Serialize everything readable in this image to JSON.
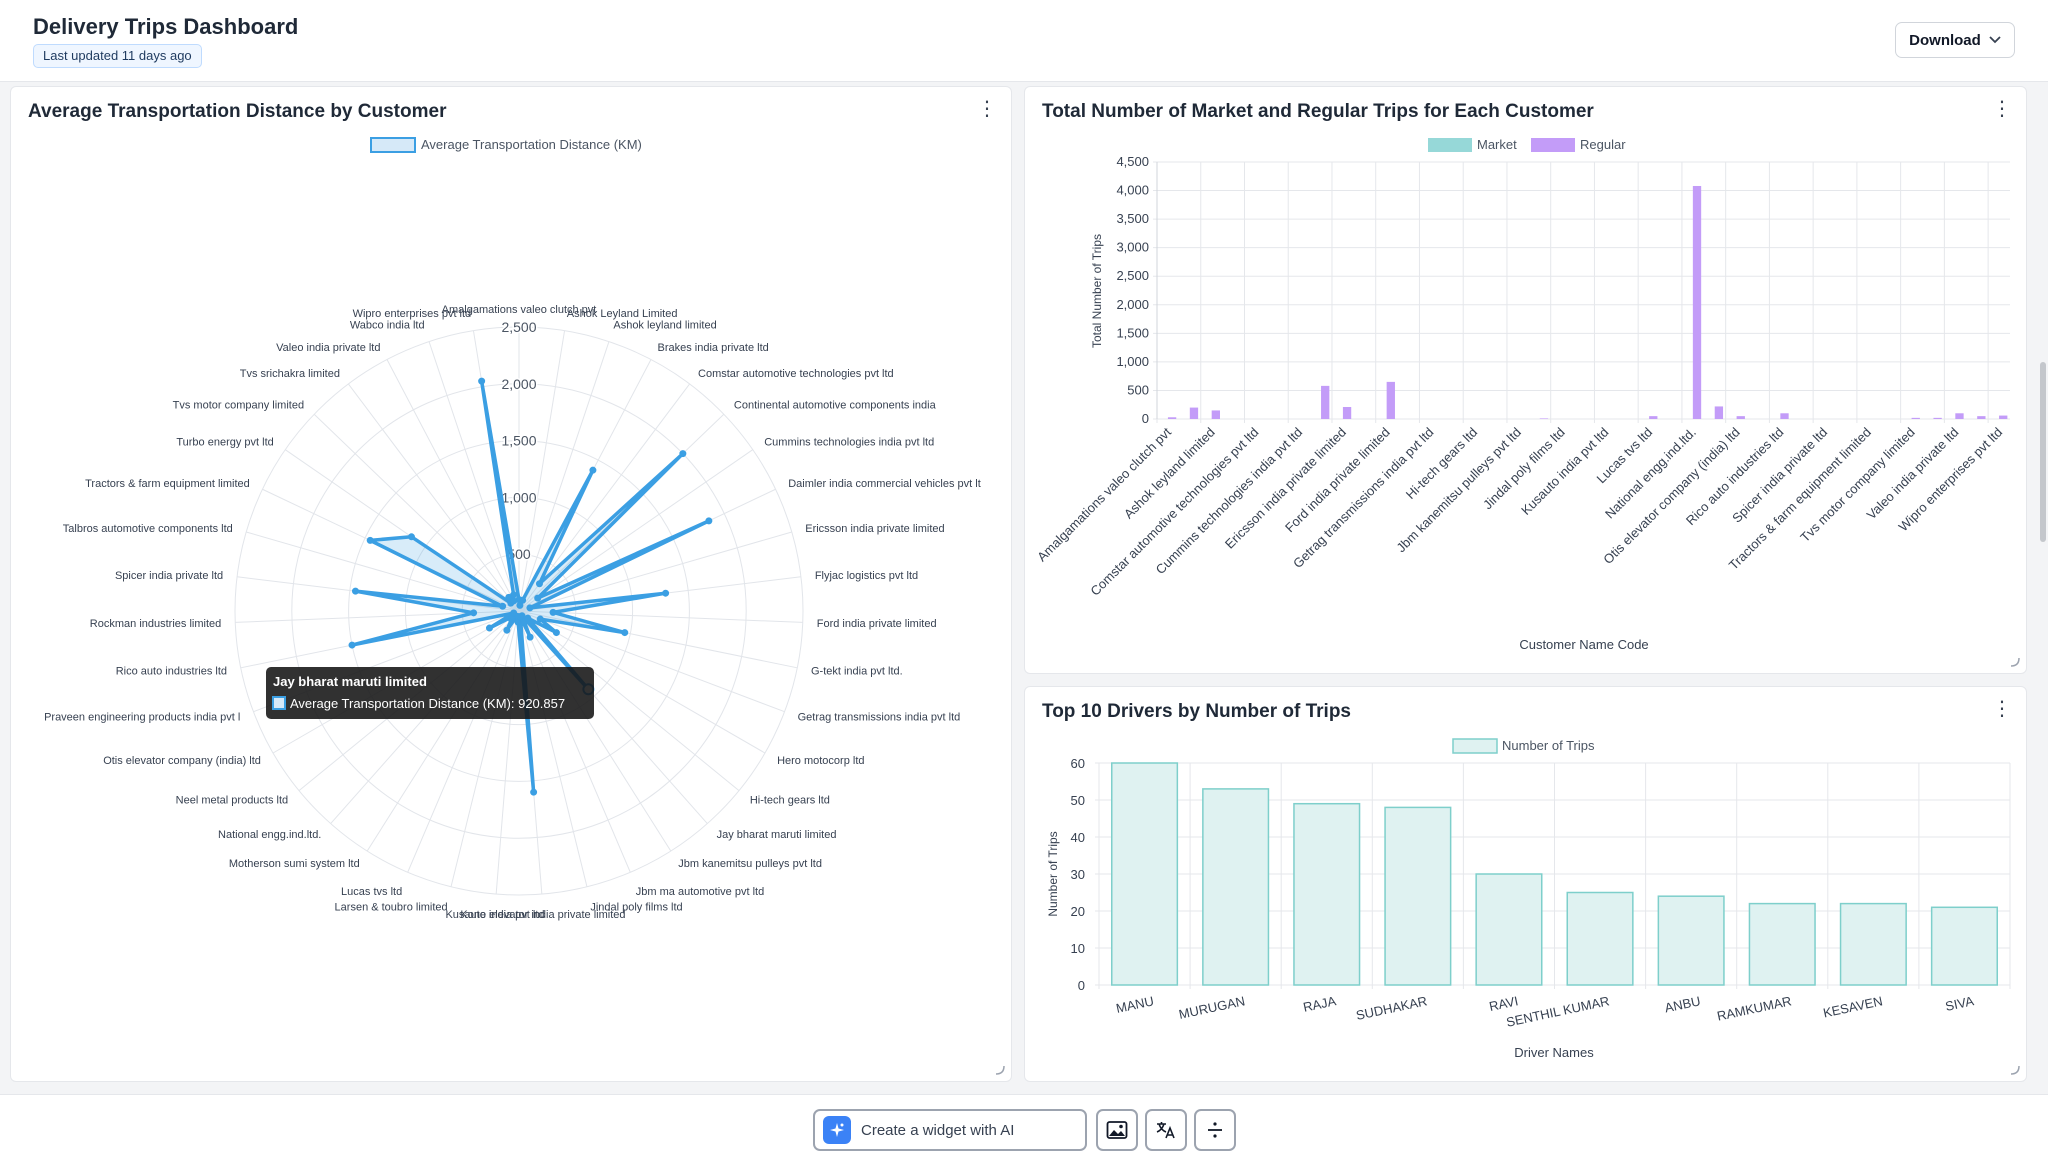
{
  "header": {
    "title": "Delivery Trips Dashboard",
    "last_updated": "Last updated 11 days ago",
    "download_label": "Download"
  },
  "panels": {
    "radar_title": "Average Transportation Distance by Customer",
    "bar1_title": "Total Number of Market and Regular Trips for Each Customer",
    "bar2_title": "Top 10 Drivers by Number of Trips"
  },
  "tooltip": {
    "title": "Jay bharat maruti limited",
    "label": "Average Transportation Distance (KM): 920.857"
  },
  "bottom_bar": {
    "ai_label": "Create a widget with AI"
  },
  "chart_data": [
    {
      "type": "radar",
      "legend": [
        "Average Transportation Distance (KM)"
      ],
      "legend_placement": "top",
      "color": "#3b9fe3",
      "ticks": [
        500,
        1000,
        1500,
        2000,
        2500
      ],
      "tick_labels": [
        "500",
        "1,000",
        "1,500",
        "2,000",
        "2,500"
      ],
      "rmax": 2500,
      "labels": [
        "Amalgamations valeo clutch pvt",
        "Ashok Leyland Limited",
        "Ashok leyland limited",
        "Brakes india private ltd",
        "Comstar automotive technologies pvt ltd",
        "Continental automotive components india",
        "Cummins technologies india pvt ltd",
        "Daimler india commercial vehicles pvt lt",
        "Ericsson india private limited",
        "Flyjac logistics pvt ltd",
        "Ford india private limited",
        "G-tekt india pvt ltd.",
        "Getrag transmissions india pvt ltd",
        "Hero motocorp ltd",
        "Hi-tech gears ltd",
        "Jay bharat maruti limited",
        "Jbm kanemitsu pulleys pvt ltd",
        "Jbm ma automotive pvt ltd",
        "Jindal poly films ltd",
        "Kone elevator india private limited",
        "Kusauto india pvt ltd",
        "Larsen & toubro limited",
        "Lucas tvs ltd",
        "Motherson sumi system ltd",
        "National engg.ind.ltd.",
        "Neel metal products ltd",
        "Otis elevator company (india) ltd",
        "Praveen engineering products india pvt l",
        "Rico auto industries ltd",
        "Rockman industries limited",
        "Spicer india private ltd",
        "Talbros automotive components ltd",
        "Tractors & farm equipment limited",
        "Turbo energy pvt ltd",
        "Tvs motor company limited",
        "Tvs srichakra limited",
        "Valeo india private ltd",
        "Wabco india ltd",
        "Wipro enterprises pvt ltd"
      ],
      "values": [
        100,
        50,
        100,
        1400,
        300,
        2000,
        200,
        1850,
        100,
        1300,
        300,
        950,
        200,
        380,
        100,
        920.857,
        50,
        250,
        50,
        1600,
        100,
        50,
        50,
        200,
        100,
        80,
        300,
        50,
        1500,
        400,
        1450,
        150,
        1450,
        1150,
        100,
        150,
        100,
        150,
        2050
      ],
      "hovered_index": 15
    },
    {
      "type": "bar",
      "legend": [
        "Market",
        "Regular"
      ],
      "legend_placement": "top",
      "xlabel": "Customer Name Code",
      "ylabel": "Total Number of Trips",
      "ylim": [
        0,
        4500
      ],
      "yticks": [
        0,
        500,
        1000,
        1500,
        2000,
        2500,
        3000,
        3500,
        4000,
        4500
      ],
      "ytick_labels": [
        "0",
        "500",
        "1,000",
        "1,500",
        "2,000",
        "2,500",
        "3,000",
        "3,500",
        "4,000",
        "4,500"
      ],
      "colors": {
        "Market": "#96d8d8",
        "Regular": "#c39cf8"
      },
      "tick_labels": [
        "Amalgamations valeo clutch pvt",
        "Ashok leyland limited",
        "Comstar automotive technologies pvt ltd",
        "Cummins technologies india pvt ltd",
        "Ericsson india private limited",
        "Ford india private limited",
        "Getrag transmissions india pvt ltd",
        "Hi-tech gears ltd",
        "Jbm kanemitsu pulleys pvt ltd",
        "Jindal poly films ltd",
        "Kusauto india pvt ltd",
        "Lucas tvs ltd",
        "National engg.ind.ltd.",
        "Otis elevator company (india) ltd",
        "Rico auto industries ltd",
        "Spicer india private ltd",
        "Tractors & farm equipment limited",
        "Tvs motor company limited",
        "Valeo india private ltd",
        "Wipro enterprises pvt ltd"
      ],
      "categories_count": 39,
      "series": [
        {
          "name": "Market",
          "values": [
            0,
            0,
            0,
            0,
            0,
            0,
            0,
            0,
            0,
            0,
            0,
            0,
            0,
            0,
            0,
            0,
            0,
            0,
            0,
            0,
            0,
            0,
            0,
            0,
            0,
            0,
            0,
            0,
            0,
            0,
            0,
            0,
            0,
            0,
            0,
            0,
            0,
            0,
            0
          ]
        },
        {
          "name": "Regular",
          "values": [
            30,
            200,
            150,
            0,
            0,
            0,
            0,
            580,
            210,
            0,
            650,
            0,
            0,
            0,
            0,
            0,
            0,
            10,
            0,
            0,
            0,
            0,
            50,
            0,
            4080,
            220,
            50,
            0,
            100,
            0,
            0,
            0,
            0,
            0,
            20,
            20,
            100,
            50,
            60
          ]
        }
      ]
    },
    {
      "type": "bar",
      "legend": [
        "Number of Trips"
      ],
      "legend_placement": "top",
      "xlabel": "Driver Names",
      "ylabel": "Number of Trips",
      "ylim": [
        0,
        60
      ],
      "yticks": [
        0,
        10,
        20,
        30,
        40,
        50,
        60
      ],
      "color": "#dff2f1",
      "border_color": "#7ecfcb",
      "categories": [
        "MANU",
        "MURUGAN",
        "RAJA",
        "SUDHAKAR",
        "RAVI",
        "SENTHIL KUMAR",
        "ANBU",
        "RAMKUMAR",
        "KESAVEN",
        "SIVA"
      ],
      "values": [
        60,
        53,
        49,
        48,
        30,
        25,
        24,
        22,
        22,
        21
      ]
    }
  ]
}
